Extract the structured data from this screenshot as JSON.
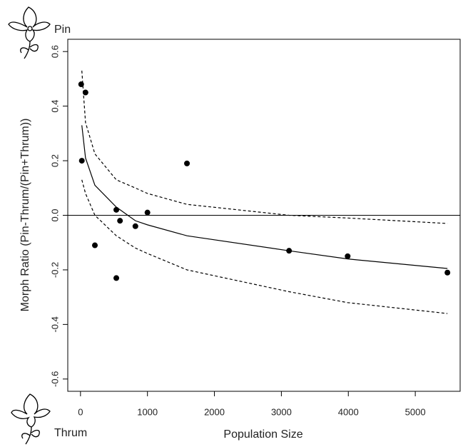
{
  "chart_data": {
    "type": "scatter",
    "x_label": "Population Size",
    "y_label": "Morph Ratio (Pin-Thrum/(Pin+Thrum))",
    "top_label": "Pin",
    "bottom_label": "Thrum",
    "x": [
      10,
      75,
      20,
      215,
      535,
      590,
      535,
      820,
      1000,
      1590,
      3115,
      3990,
      5480
    ],
    "values": [
      0.48,
      0.45,
      0.2,
      -0.11,
      0.02,
      -0.02,
      -0.23,
      -0.04,
      0.01,
      0.19,
      -0.13,
      -0.15,
      -0.21
    ],
    "color": "#000000",
    "fit": {
      "x": [
        20,
        75,
        215,
        535,
        820,
        1000,
        1590,
        3115,
        3990,
        5480
      ],
      "values": [
        0.33,
        0.21,
        0.11,
        0.03,
        -0.02,
        -0.035,
        -0.075,
        -0.13,
        -0.16,
        -0.195
      ],
      "upper": [
        0.53,
        0.34,
        0.225,
        0.13,
        0.1,
        0.08,
        0.04,
        0.0,
        -0.01,
        -0.03
      ],
      "lower": [
        0.13,
        0.08,
        0.0,
        -0.075,
        -0.12,
        -0.14,
        -0.2,
        -0.28,
        -0.32,
        -0.36
      ]
    },
    "hline": 0,
    "xlim": [
      -190,
      5670
    ],
    "ylim": [
      -0.645,
      0.645
    ],
    "xticks": [
      0,
      1000,
      2000,
      3000,
      4000,
      5000
    ],
    "yticks": [
      -0.6,
      -0.4,
      -0.2,
      {
        "value": 0,
        "label": "0.0"
      },
      0.2,
      0.4,
      0.6
    ]
  }
}
